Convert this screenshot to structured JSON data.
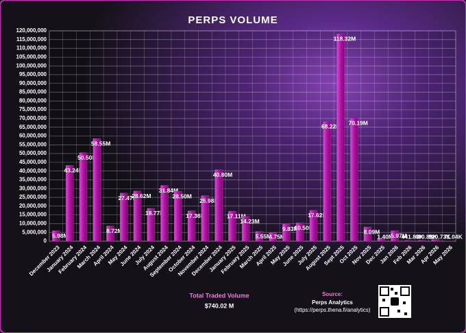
{
  "chart_data": {
    "type": "bar",
    "title": "PERPS VOLUME",
    "categories": [
      "December 2023",
      "January 2024",
      "February 2024",
      "March 2024",
      "April 2024",
      "May 2024",
      "June 2024",
      "July 2024",
      "August 2024",
      "September 2024",
      "October 2024",
      "November 2024",
      "December 2024",
      "January 2025",
      "February 2025",
      "March 2025",
      "April 2025",
      "May 2025",
      "June 2025",
      "July 2025",
      "August 2025",
      "Sept 2025",
      "Oct 2025",
      "Nov 2025",
      "Dec 2025",
      "Jan 2026",
      "Feb 2026",
      "Mar 2026",
      "Apr 2026",
      "May 2026"
    ],
    "values": [
      5980000,
      43240000,
      50500000,
      58550000,
      8720000,
      27470000,
      28620000,
      18770000,
      31840000,
      28500000,
      17360000,
      25980000,
      40800000,
      17110000,
      14230000,
      5550000,
      4750000,
      9830000,
      10500000,
      17620000,
      68220000,
      118320000,
      70190000,
      8090000,
      1400000,
      5970000,
      441830,
      490890,
      920730,
      71040
    ],
    "value_labels": [
      "5.98M",
      "43.24M",
      "50.50M",
      "58.55M",
      "8.72M",
      "27.47M",
      "28.62M",
      "18.77M",
      "31.84M",
      "28.50M",
      "17.36M",
      "25.98M",
      "40.80M",
      "17.11M",
      "14.23M",
      "5.55M",
      "4.75M",
      "9.83M",
      "10.50M",
      "17.62M",
      "68.22M",
      "118.32M",
      "70.19M",
      "8.09M",
      "1.40M",
      "5.97M",
      "441.83K",
      "490.89K",
      "920.73K",
      "71.04K"
    ],
    "color": "#c21bb8",
    "ylim": [
      0,
      120000000
    ],
    "yticks": [
      0,
      {
        "value": 5000000,
        "label": "5,000,000"
      },
      {
        "value": 10000000,
        "label": "10,000,000"
      },
      {
        "value": 15000000,
        "label": "15,000,000"
      },
      {
        "value": 20000000,
        "label": "20,000,000"
      },
      {
        "value": 25000000,
        "label": "25,000,000"
      },
      {
        "value": 30000000,
        "label": "30,000,000"
      },
      {
        "value": 35000000,
        "label": "35,000,000"
      },
      {
        "value": 40000000,
        "label": "40,000,000"
      },
      {
        "value": 45000000,
        "label": "45,000,000"
      },
      {
        "value": 50000000,
        "label": "50,000,000"
      },
      {
        "value": 55000000,
        "label": "55,000,000"
      },
      {
        "value": 60000000,
        "label": "60,000,000"
      },
      {
        "value": 65000000,
        "label": "65,000,000"
      },
      {
        "value": 70000000,
        "label": "70,000,000"
      },
      {
        "value": 75000000,
        "label": "75,000,000"
      },
      {
        "value": 80000000,
        "label": "80,000,000"
      },
      {
        "value": 85000000,
        "label": "85,000,000"
      },
      {
        "value": 90000000,
        "label": "90,000,000"
      },
      {
        "value": 95000000,
        "label": "95,000,000"
      },
      {
        "value": 100000000,
        "label": "100,000,000"
      },
      {
        "value": 105000000,
        "label": "105,000,000"
      },
      {
        "value": 110000000,
        "label": "110,000,000"
      },
      {
        "value": 115000000,
        "label": "115,000,000"
      },
      {
        "value": 120000000,
        "label": "120,000,000"
      }
    ],
    "grid": true,
    "footer": {
      "total_label": "Total Traded Volume",
      "total_value": "$740.02 M",
      "source_label": "Source:",
      "source_name": "Perps Analytics",
      "source_url": "(https://perps.thena.fi/analytics)"
    }
  }
}
